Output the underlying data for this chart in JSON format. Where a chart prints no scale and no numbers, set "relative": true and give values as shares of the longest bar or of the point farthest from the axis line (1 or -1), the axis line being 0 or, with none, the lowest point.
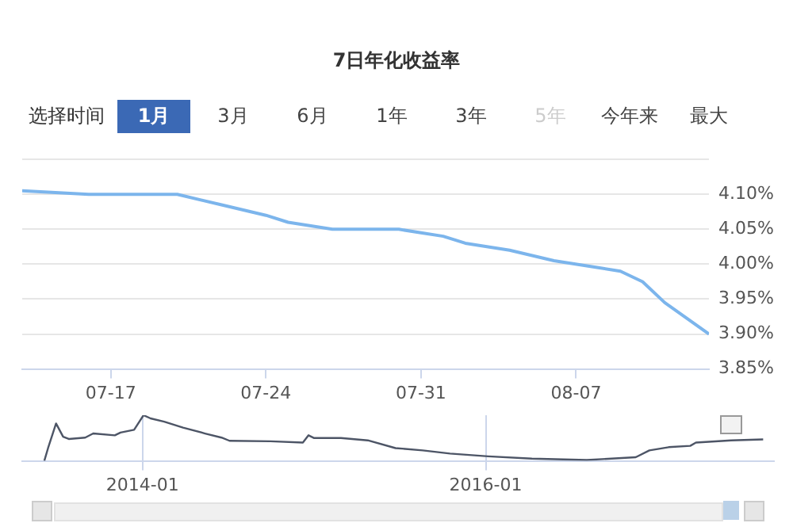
{
  "chart_data": [
    {
      "type": "line",
      "title": "7日年化收益率",
      "annotations": [
        "选择时间",
        "1月",
        "3月",
        "6月",
        "1年",
        "3年",
        "5年",
        "今年来",
        "最大"
      ],
      "x": [
        "--07-13",
        "--07-16",
        "--07-18",
        "--07-20",
        "--07-22",
        "--07-24",
        "--07-25",
        "--07-27",
        "--07-28",
        "--07-29",
        "--07-30",
        "--07-31",
        "--08-01",
        "--08-02",
        "--08-04",
        "--08-06",
        "--08-08",
        "--08-09",
        "--08-10",
        "--08-11",
        "--08-13"
      ],
      "series": [
        {
          "color": "#7cb5ec",
          "values": [
            4.105,
            4.1,
            4.1,
            4.1,
            4.085,
            4.07,
            4.06,
            4.05,
            4.05,
            4.05,
            4.05,
            4.045,
            4.04,
            4.03,
            4.02,
            4.005,
            3.995,
            3.99,
            3.975,
            3.945,
            3.9
          ]
        }
      ],
      "xlim": [
        "--07-13",
        "--08-13"
      ],
      "xticks": [
        {
          "value": "--07-17",
          "label": "07-17"
        },
        {
          "value": "--07-24",
          "label": "07-24"
        },
        {
          "value": "--07-31",
          "label": "07-31"
        },
        {
          "value": "--08-07",
          "label": "08-07"
        }
      ],
      "ylim": [
        3.85,
        4.15
      ],
      "yticks": [
        {
          "value": 3.85,
          "label": "3.85%"
        },
        {
          "value": 3.9,
          "label": "3.90%"
        },
        {
          "value": 3.95,
          "label": "3.95%"
        },
        {
          "value": 4.0,
          "label": "4.00%"
        },
        {
          "value": 4.05,
          "label": "4.05%"
        },
        {
          "value": 4.1,
          "label": "4.10%"
        },
        {
          "value": 4.15,
          "label": null
        }
      ],
      "grid": "y",
      "marker": "none"
    },
    {
      "type": "line",
      "relative": true,
      "x": [
        "2013-06-06",
        "2013-06-14",
        "2013-07-01",
        "2013-07-16",
        "2013-07-28",
        "2013-09-01",
        "2013-09-18",
        "2013-11-03",
        "2013-11-15",
        "2013-12-14",
        "2014-01-03",
        "2014-01-18",
        "2014-02-16",
        "2014-03-28",
        "2014-05-14",
        "2014-06-18",
        "2014-07-05",
        "2014-09-30",
        "2014-12-08",
        "2014-12-20",
        "2015-01-01",
        "2015-02-27",
        "2015-04-25",
        "2015-06-23",
        "2015-08-20",
        "2015-10-17",
        "2016-01-06",
        "2016-04-08",
        "2016-08-03",
        "2016-11-15",
        "2016-12-14",
        "2017-01-24",
        "2017-03-11",
        "2017-03-23",
        "2017-06-06",
        "2017-08-13"
      ],
      "series": [
        {
          "color": "#4d5566",
          "values": [
            0,
            0.28,
            0.82,
            0.53,
            0.48,
            0.51,
            0.6,
            0.56,
            0.62,
            0.68,
            1,
            0.93,
            0.86,
            0.73,
            0.6,
            0.51,
            0.44,
            0.43,
            0.4,
            0.56,
            0.5,
            0.5,
            0.45,
            0.28,
            0.23,
            0.16,
            0.1,
            0.05,
            0.02,
            0.08,
            0.23,
            0.3,
            0.33,
            0.4,
            0.45,
            0.47
          ]
        }
      ],
      "xlim": [
        "2013-04-20",
        "2017-09-05"
      ],
      "xticks": [
        "2014-01",
        "2016-01"
      ],
      "grid": "x",
      "marker": "none"
    }
  ]
}
